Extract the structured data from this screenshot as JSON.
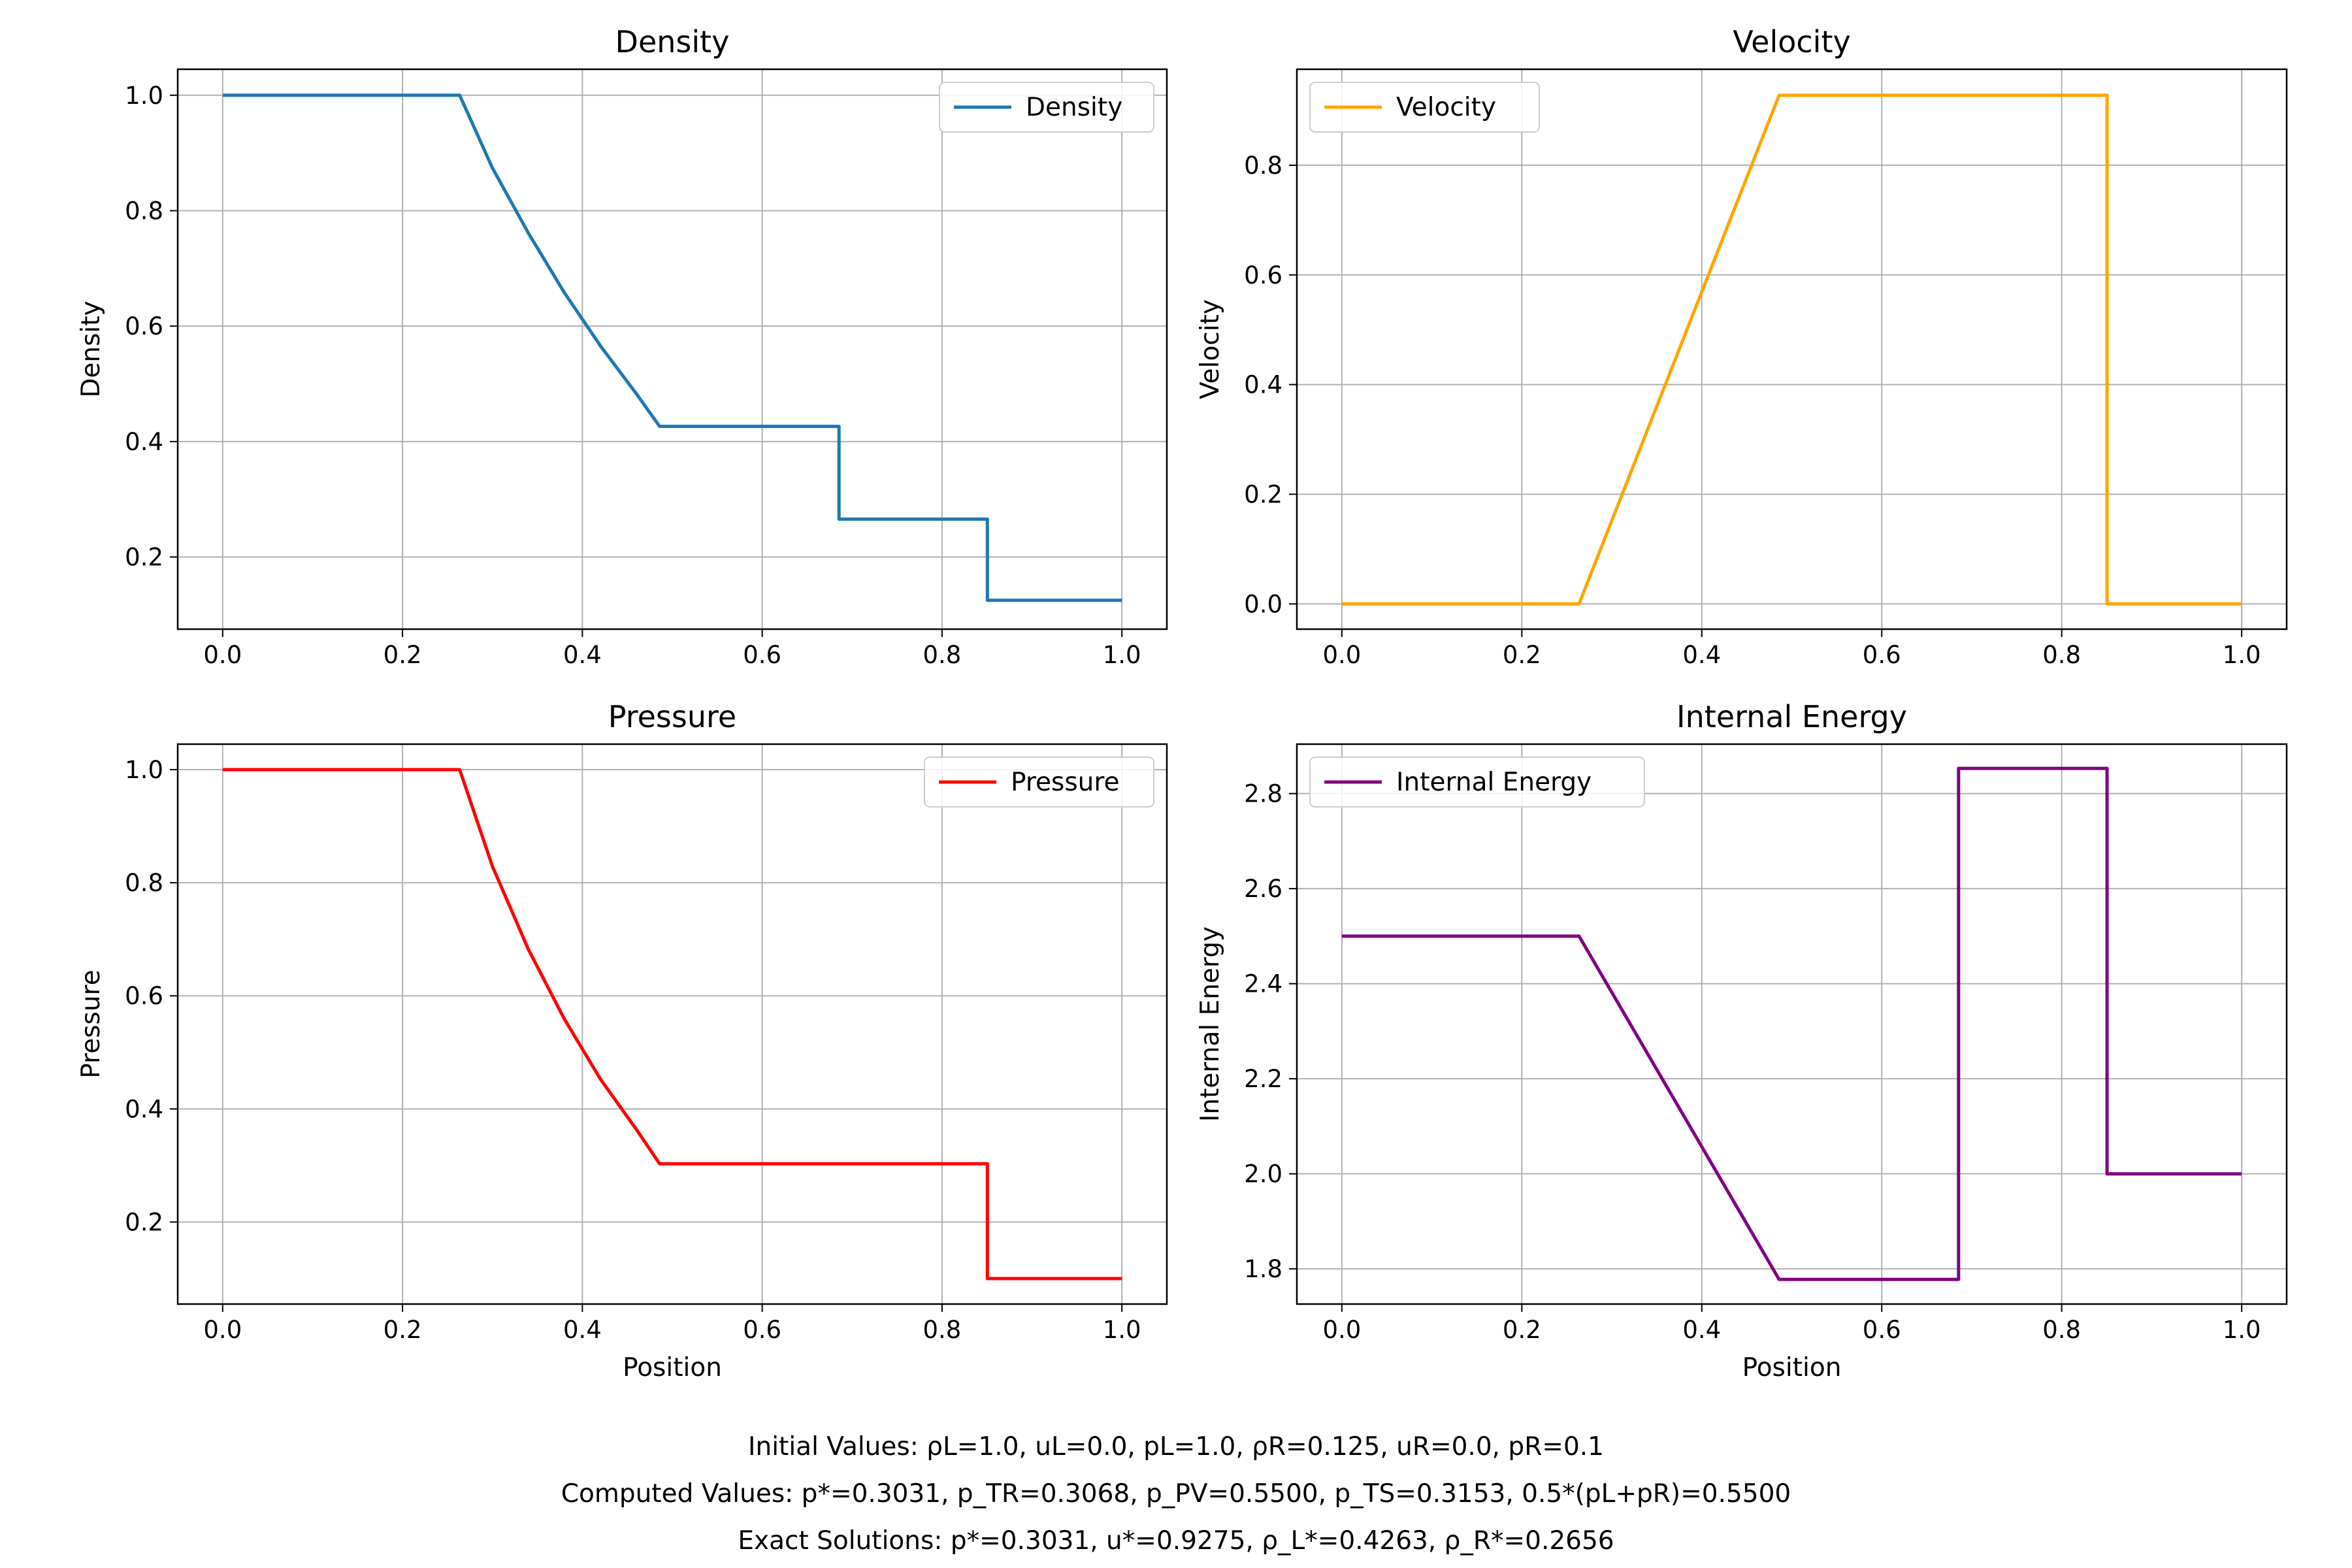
{
  "chart_data": [
    {
      "type": "line",
      "title": "Density",
      "xlabel": "",
      "ylabel": "Density",
      "xlim": [
        -0.05,
        1.05
      ],
      "ylim": [
        0.075,
        1.045
      ],
      "xticks": [
        "0.0",
        "0.2",
        "0.4",
        "0.6",
        "0.8",
        "1.0"
      ],
      "yticks": [
        "0.2",
        "0.4",
        "0.6",
        "0.8",
        "1.0"
      ],
      "grid": true,
      "legend": "top-right",
      "series": [
        {
          "name": "Density",
          "color": "#1f77b4",
          "x": [
            0.0,
            0.2636,
            0.3,
            0.34,
            0.38,
            0.42,
            0.46,
            0.4859,
            0.6854,
            0.6854,
            0.8504,
            0.8504,
            1.0
          ],
          "y": [
            1.0,
            1.0,
            0.874,
            0.761,
            0.658,
            0.566,
            0.483,
            0.4263,
            0.4263,
            0.2656,
            0.2656,
            0.125,
            0.125
          ]
        }
      ]
    },
    {
      "type": "line",
      "title": "Velocity",
      "xlabel": "",
      "ylabel": "Velocity",
      "xlim": [
        -0.05,
        1.05
      ],
      "ylim": [
        -0.046,
        0.975
      ],
      "xticks": [
        "0.0",
        "0.2",
        "0.4",
        "0.6",
        "0.8",
        "1.0"
      ],
      "yticks": [
        "0.0",
        "0.2",
        "0.4",
        "0.6",
        "0.8"
      ],
      "grid": true,
      "legend": "top-left",
      "series": [
        {
          "name": "Velocity",
          "color": "#ffa500",
          "x": [
            0.0,
            0.2636,
            0.4859,
            0.8504,
            0.8504,
            1.0
          ],
          "y": [
            0.0,
            0.0,
            0.9275,
            0.9275,
            0.0,
            0.0
          ]
        }
      ]
    },
    {
      "type": "line",
      "title": "Pressure",
      "xlabel": "Position",
      "ylabel": "Pressure",
      "xlim": [
        -0.05,
        1.05
      ],
      "ylim": [
        0.055,
        1.045
      ],
      "xticks": [
        "0.0",
        "0.2",
        "0.4",
        "0.6",
        "0.8",
        "1.0"
      ],
      "yticks": [
        "0.2",
        "0.4",
        "0.6",
        "0.8",
        "1.0"
      ],
      "grid": true,
      "legend": "top-right",
      "series": [
        {
          "name": "Pressure",
          "color": "#ff0000",
          "x": [
            0.0,
            0.2636,
            0.3,
            0.34,
            0.38,
            0.42,
            0.46,
            0.4859,
            0.8504,
            0.8504,
            1.0
          ],
          "y": [
            1.0,
            1.0,
            0.829,
            0.682,
            0.559,
            0.453,
            0.364,
            0.3031,
            0.3031,
            0.1,
            0.1
          ]
        }
      ]
    },
    {
      "type": "line",
      "title": "Internal Energy",
      "xlabel": "Position",
      "ylabel": "Internal Energy",
      "xlim": [
        -0.05,
        1.05
      ],
      "ylim": [
        1.726,
        2.904
      ],
      "xticks": [
        "0.0",
        "0.2",
        "0.4",
        "0.6",
        "0.8",
        "1.0"
      ],
      "yticks": [
        "1.8",
        "2.0",
        "2.2",
        "2.4",
        "2.6",
        "2.8"
      ],
      "grid": true,
      "legend": "top-left",
      "series": [
        {
          "name": "Internal Energy",
          "color": "#800080",
          "x": [
            0.0,
            0.2636,
            0.4859,
            0.6854,
            0.6854,
            0.8504,
            0.8504,
            1.0
          ],
          "y": [
            2.5,
            2.5,
            1.778,
            1.778,
            2.853,
            2.853,
            2.0,
            2.0
          ]
        }
      ]
    }
  ],
  "annotations": {
    "initial": "Initial Values:  ρL=1.0, uL=0.0, pL=1.0,  ρR=0.125, uR=0.0, pR=0.1",
    "computed": "Computed Values:  p*=0.3031, p_TR=0.3068, p_PV=0.5500, p_TS=0.3153, 0.5*(pL+pR)=0.5500",
    "exact": "Exact Solutions:  p*=0.3031, u*=0.9275, ρ_L*=0.4263, ρ_R*=0.2656"
  }
}
